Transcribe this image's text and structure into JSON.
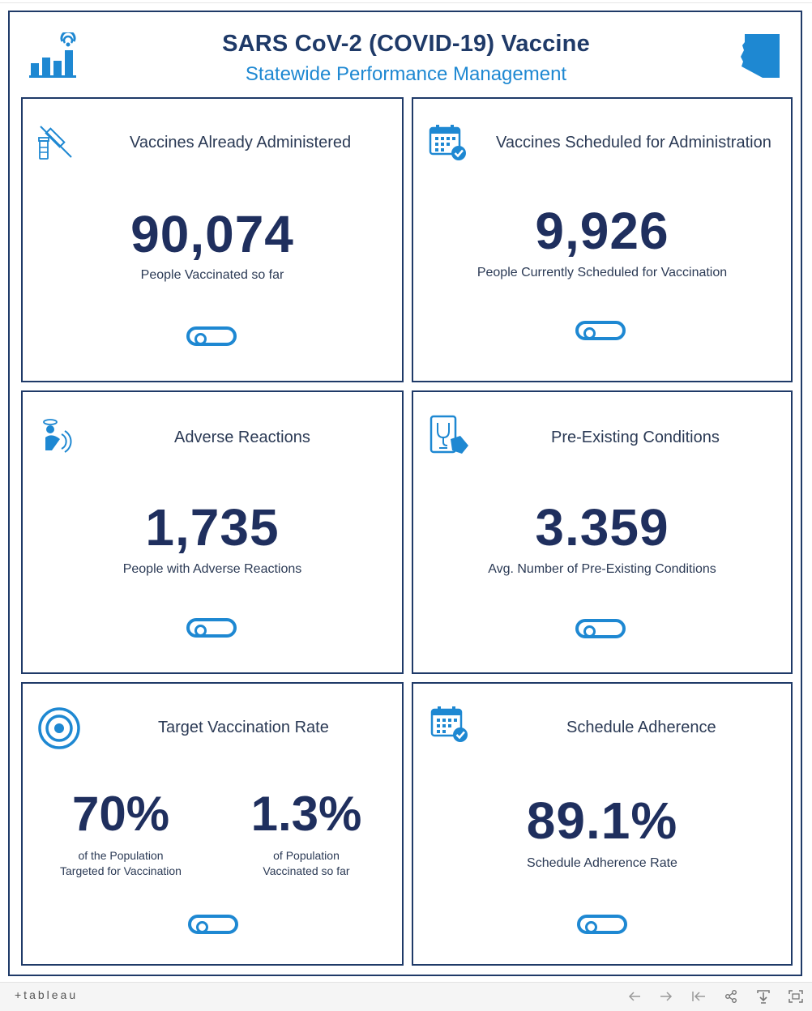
{
  "header": {
    "title": "SARS CoV-2 (COVID-19) Vaccine",
    "subtitle": "Statewide Performance Management"
  },
  "colors": {
    "navy": "#1f3a68",
    "accent_blue": "#1e88d2",
    "number_color": "#1f2f5e"
  },
  "cards": [
    {
      "title": "Vaccines Already Administered",
      "value": "90,074",
      "subtitle": "People Vaccinated so far",
      "icon": "vaccine-syringe-icon"
    },
    {
      "title": "Vaccines Scheduled for Administration",
      "value": "9,926",
      "subtitle": "People Currently Scheduled for Vaccination",
      "icon": "calendar-check-icon"
    },
    {
      "title": "Adverse Reactions",
      "value": "1,735",
      "subtitle": "People with Adverse Reactions",
      "icon": "dizzy-person-icon"
    },
    {
      "title": "Pre-Existing Conditions",
      "value": "3.359",
      "subtitle": "Avg. Number of Pre-Existing Conditions",
      "icon": "tablet-stethoscope-icon"
    },
    {
      "title": "Target Vaccination Rate",
      "left_value": "70%",
      "left_sub_1": "of the Population",
      "left_sub_2": "Targeted for Vaccination",
      "right_value": "1.3%",
      "right_sub_1": "of Population",
      "right_sub_2": "Vaccinated so far",
      "icon": "target-icon"
    },
    {
      "title": "Schedule Adherence",
      "value": "89.1%",
      "subtitle": "Schedule Adherence Rate",
      "icon": "calendar-check-icon"
    }
  ],
  "footer": {
    "brand": "+tableau",
    "toolbar": [
      "undo-icon",
      "redo-icon",
      "revert-icon",
      "share-icon",
      "download-icon",
      "fullscreen-icon"
    ]
  }
}
